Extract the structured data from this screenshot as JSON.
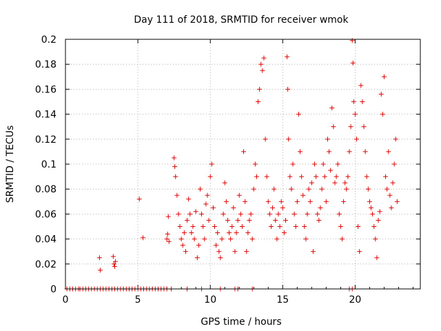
{
  "chart_data": {
    "type": "scatter",
    "title": "Day 111 of 2018, SRMTID for receiver wmok",
    "xlabel": "GPS time / hours",
    "ylabel": "SRMTID / TECUs",
    "xlim": [
      0,
      24.5
    ],
    "ylim": [
      0,
      0.2
    ],
    "xticks": [
      0,
      5,
      10,
      15,
      20
    ],
    "xtick_labels": [
      "0",
      "5",
      "10",
      "15",
      "20"
    ],
    "yticks": [
      0,
      0.02,
      0.04,
      0.06,
      0.08,
      0.1,
      0.12,
      0.14,
      0.16,
      0.18,
      0.2
    ],
    "ytick_labels": [
      "0",
      "0.02",
      "0.04",
      "0.06",
      "0.08",
      "0.1",
      "0.12",
      "0.14",
      "0.16",
      "0.18",
      "0.2"
    ],
    "grid": true,
    "marker": "+",
    "color": "#e00000",
    "series": [
      {
        "name": "SRMTID",
        "points": [
          [
            0.1,
            0
          ],
          [
            0.3,
            0
          ],
          [
            0.5,
            0
          ],
          [
            0.7,
            0
          ],
          [
            0.9,
            0
          ],
          [
            1.0,
            0
          ],
          [
            1.2,
            0
          ],
          [
            1.4,
            0
          ],
          [
            1.6,
            0
          ],
          [
            1.8,
            0
          ],
          [
            2.0,
            0
          ],
          [
            2.2,
            0
          ],
          [
            2.4,
            0
          ],
          [
            2.6,
            0
          ],
          [
            2.8,
            0
          ],
          [
            3.0,
            0
          ],
          [
            3.2,
            0
          ],
          [
            3.4,
            0
          ],
          [
            3.6,
            0
          ],
          [
            3.8,
            0
          ],
          [
            4.0,
            0
          ],
          [
            4.2,
            0
          ],
          [
            4.4,
            0
          ],
          [
            4.6,
            0
          ],
          [
            4.8,
            0
          ],
          [
            5.0,
            0
          ],
          [
            5.2,
            0
          ],
          [
            5.4,
            0
          ],
          [
            5.6,
            0
          ],
          [
            5.8,
            0
          ],
          [
            6.0,
            0
          ],
          [
            6.2,
            0
          ],
          [
            6.4,
            0
          ],
          [
            6.6,
            0
          ],
          [
            6.8,
            0
          ],
          [
            7.0,
            0
          ],
          [
            7.3,
            0
          ],
          [
            8.4,
            0
          ],
          [
            9.4,
            0
          ],
          [
            10.7,
            0
          ],
          [
            11.7,
            0
          ],
          [
            11.9,
            0
          ],
          [
            12.9,
            0
          ],
          [
            19.6,
            0
          ],
          [
            19.8,
            0
          ],
          [
            2.35,
            0.025
          ],
          [
            2.4,
            0.015
          ],
          [
            3.3,
            0.026
          ],
          [
            3.35,
            0.02
          ],
          [
            3.4,
            0.018
          ],
          [
            3.45,
            0.022
          ],
          [
            5.1,
            0.072
          ],
          [
            5.35,
            0.041
          ],
          [
            7.0,
            0.04
          ],
          [
            7.05,
            0.044
          ],
          [
            7.1,
            0.058
          ],
          [
            7.15,
            0.038
          ],
          [
            7.5,
            0.105
          ],
          [
            7.55,
            0.098
          ],
          [
            7.6,
            0.09
          ],
          [
            7.7,
            0.075
          ],
          [
            7.8,
            0.06
          ],
          [
            7.9,
            0.05
          ],
          [
            8.0,
            0.04
          ],
          [
            8.1,
            0.035
          ],
          [
            8.2,
            0.045
          ],
          [
            8.3,
            0.03
          ],
          [
            8.4,
            0.055
          ],
          [
            8.5,
            0.072
          ],
          [
            8.6,
            0.06
          ],
          [
            8.7,
            0.045
          ],
          [
            8.8,
            0.05
          ],
          [
            8.9,
            0.04
          ],
          [
            9.0,
            0.062
          ],
          [
            9.1,
            0.025
          ],
          [
            9.2,
            0.035
          ],
          [
            9.3,
            0.08
          ],
          [
            9.4,
            0.06
          ],
          [
            9.5,
            0.05
          ],
          [
            9.6,
            0.04
          ],
          [
            9.7,
            0.068
          ],
          [
            9.8,
            0.075
          ],
          [
            9.9,
            0.055
          ],
          [
            10.0,
            0.09
          ],
          [
            10.1,
            0.1
          ],
          [
            10.2,
            0.065
          ],
          [
            10.3,
            0.05
          ],
          [
            10.4,
            0.035
          ],
          [
            10.5,
            0.045
          ],
          [
            10.6,
            0.03
          ],
          [
            10.7,
            0.025
          ],
          [
            10.8,
            0.04
          ],
          [
            10.9,
            0.06
          ],
          [
            11.0,
            0.085
          ],
          [
            11.1,
            0.07
          ],
          [
            11.2,
            0.055
          ],
          [
            11.3,
            0.045
          ],
          [
            11.4,
            0.04
          ],
          [
            11.5,
            0.05
          ],
          [
            11.6,
            0.065
          ],
          [
            11.7,
            0.03
          ],
          [
            11.8,
            0.045
          ],
          [
            11.9,
            0.055
          ],
          [
            12.0,
            0.075
          ],
          [
            12.1,
            0.06
          ],
          [
            12.2,
            0.05
          ],
          [
            12.3,
            0.11
          ],
          [
            12.4,
            0.07
          ],
          [
            12.5,
            0.03
          ],
          [
            12.6,
            0.045
          ],
          [
            12.7,
            0.055
          ],
          [
            12.8,
            0.06
          ],
          [
            12.9,
            0.04
          ],
          [
            13.0,
            0.08
          ],
          [
            13.1,
            0.1
          ],
          [
            13.2,
            0.09
          ],
          [
            13.3,
            0.15
          ],
          [
            13.4,
            0.16
          ],
          [
            13.5,
            0.18
          ],
          [
            13.6,
            0.175
          ],
          [
            13.7,
            0.185
          ],
          [
            13.8,
            0.12
          ],
          [
            13.9,
            0.09
          ],
          [
            14.0,
            0.07
          ],
          [
            14.1,
            0.06
          ],
          [
            14.2,
            0.05
          ],
          [
            14.3,
            0.065
          ],
          [
            14.4,
            0.08
          ],
          [
            14.5,
            0.055
          ],
          [
            14.6,
            0.04
          ],
          [
            14.7,
            0.06
          ],
          [
            14.8,
            0.05
          ],
          [
            14.9,
            0.07
          ],
          [
            15.0,
            0.065
          ],
          [
            15.1,
            0.045
          ],
          [
            15.2,
            0.055
          ],
          [
            15.3,
            0.186
          ],
          [
            15.35,
            0.16
          ],
          [
            15.4,
            0.12
          ],
          [
            15.5,
            0.09
          ],
          [
            15.6,
            0.08
          ],
          [
            15.7,
            0.1
          ],
          [
            15.8,
            0.06
          ],
          [
            15.9,
            0.05
          ],
          [
            16.0,
            0.07
          ],
          [
            16.1,
            0.14
          ],
          [
            16.2,
            0.11
          ],
          [
            16.3,
            0.09
          ],
          [
            16.4,
            0.075
          ],
          [
            16.5,
            0.05
          ],
          [
            16.6,
            0.04
          ],
          [
            16.7,
            0.06
          ],
          [
            16.8,
            0.08
          ],
          [
            16.9,
            0.07
          ],
          [
            17.0,
            0.085
          ],
          [
            17.1,
            0.03
          ],
          [
            17.2,
            0.1
          ],
          [
            17.3,
            0.09
          ],
          [
            17.4,
            0.06
          ],
          [
            17.5,
            0.055
          ],
          [
            17.6,
            0.065
          ],
          [
            17.7,
            0.08
          ],
          [
            17.8,
            0.1
          ],
          [
            17.9,
            0.09
          ],
          [
            18.0,
            0.07
          ],
          [
            18.1,
            0.12
          ],
          [
            18.2,
            0.11
          ],
          [
            18.3,
            0.095
          ],
          [
            18.4,
            0.145
          ],
          [
            18.5,
            0.13
          ],
          [
            18.6,
            0.085
          ],
          [
            18.7,
            0.09
          ],
          [
            18.8,
            0.1
          ],
          [
            18.9,
            0.06
          ],
          [
            19.0,
            0.05
          ],
          [
            19.1,
            0.04
          ],
          [
            19.2,
            0.07
          ],
          [
            19.3,
            0.085
          ],
          [
            19.4,
            0.08
          ],
          [
            19.5,
            0.09
          ],
          [
            19.6,
            0.11
          ],
          [
            19.7,
            0.13
          ],
          [
            19.8,
            0.199
          ],
          [
            19.85,
            0.181
          ],
          [
            19.9,
            0.15
          ],
          [
            20.0,
            0.14
          ],
          [
            20.1,
            0.12
          ],
          [
            20.2,
            0.05
          ],
          [
            20.3,
            0.03
          ],
          [
            20.4,
            0.163
          ],
          [
            20.5,
            0.15
          ],
          [
            20.6,
            0.13
          ],
          [
            20.7,
            0.11
          ],
          [
            20.8,
            0.09
          ],
          [
            20.9,
            0.08
          ],
          [
            21.0,
            0.07
          ],
          [
            21.1,
            0.065
          ],
          [
            21.2,
            0.06
          ],
          [
            21.3,
            0.05
          ],
          [
            21.4,
            0.04
          ],
          [
            21.5,
            0.025
          ],
          [
            21.6,
            0.055
          ],
          [
            21.7,
            0.062
          ],
          [
            21.8,
            0.156
          ],
          [
            21.9,
            0.14
          ],
          [
            22.0,
            0.17
          ],
          [
            22.1,
            0.09
          ],
          [
            22.2,
            0.08
          ],
          [
            22.3,
            0.11
          ],
          [
            22.4,
            0.075
          ],
          [
            22.5,
            0.065
          ],
          [
            22.6,
            0.085
          ],
          [
            22.7,
            0.1
          ],
          [
            22.8,
            0.12
          ],
          [
            22.9,
            0.07
          ]
        ]
      }
    ]
  }
}
